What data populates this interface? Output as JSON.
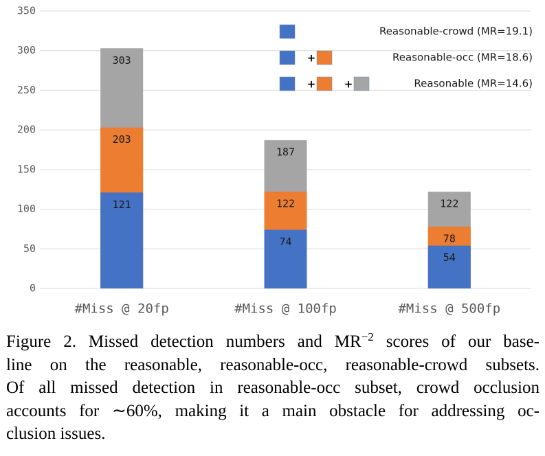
{
  "chart_data": {
    "type": "bar",
    "categories": [
      "#Miss @ 20fp",
      "#Miss @ 100fp",
      "#Miss @ 500fp"
    ],
    "series": [
      {
        "name": "Reasonable-crowd (MR=19.1)",
        "color": "#4472c4",
        "values": [
          121,
          74,
          54
        ]
      },
      {
        "name": "Reasonable-occ (MR=18.6)",
        "color": "#ed7d31",
        "values": [
          203,
          122,
          78
        ]
      },
      {
        "name": "Reasonable (MR=14.6)",
        "color": "#a5a5a5",
        "values": [
          303,
          187,
          122
        ]
      }
    ],
    "ylim": [
      0,
      350
    ],
    "yticks": [
      0,
      50,
      100,
      150,
      200,
      250,
      300,
      350
    ],
    "grid": true,
    "legend": "upper right"
  },
  "caption": {
    "line1": [
      "Figure 2. Missed detection numbers and MR",
      "−2",
      " scores of our base-"
    ],
    "lines": [
      "line on the reasonable, reasonable-occ, reasonable-crowd subsets.",
      "Of all missed detection in reasonable-occ subset, crowd occlusion",
      "accounts for ∼60%, making it a main obstacle for addressing oc-",
      "clusion issues."
    ]
  }
}
